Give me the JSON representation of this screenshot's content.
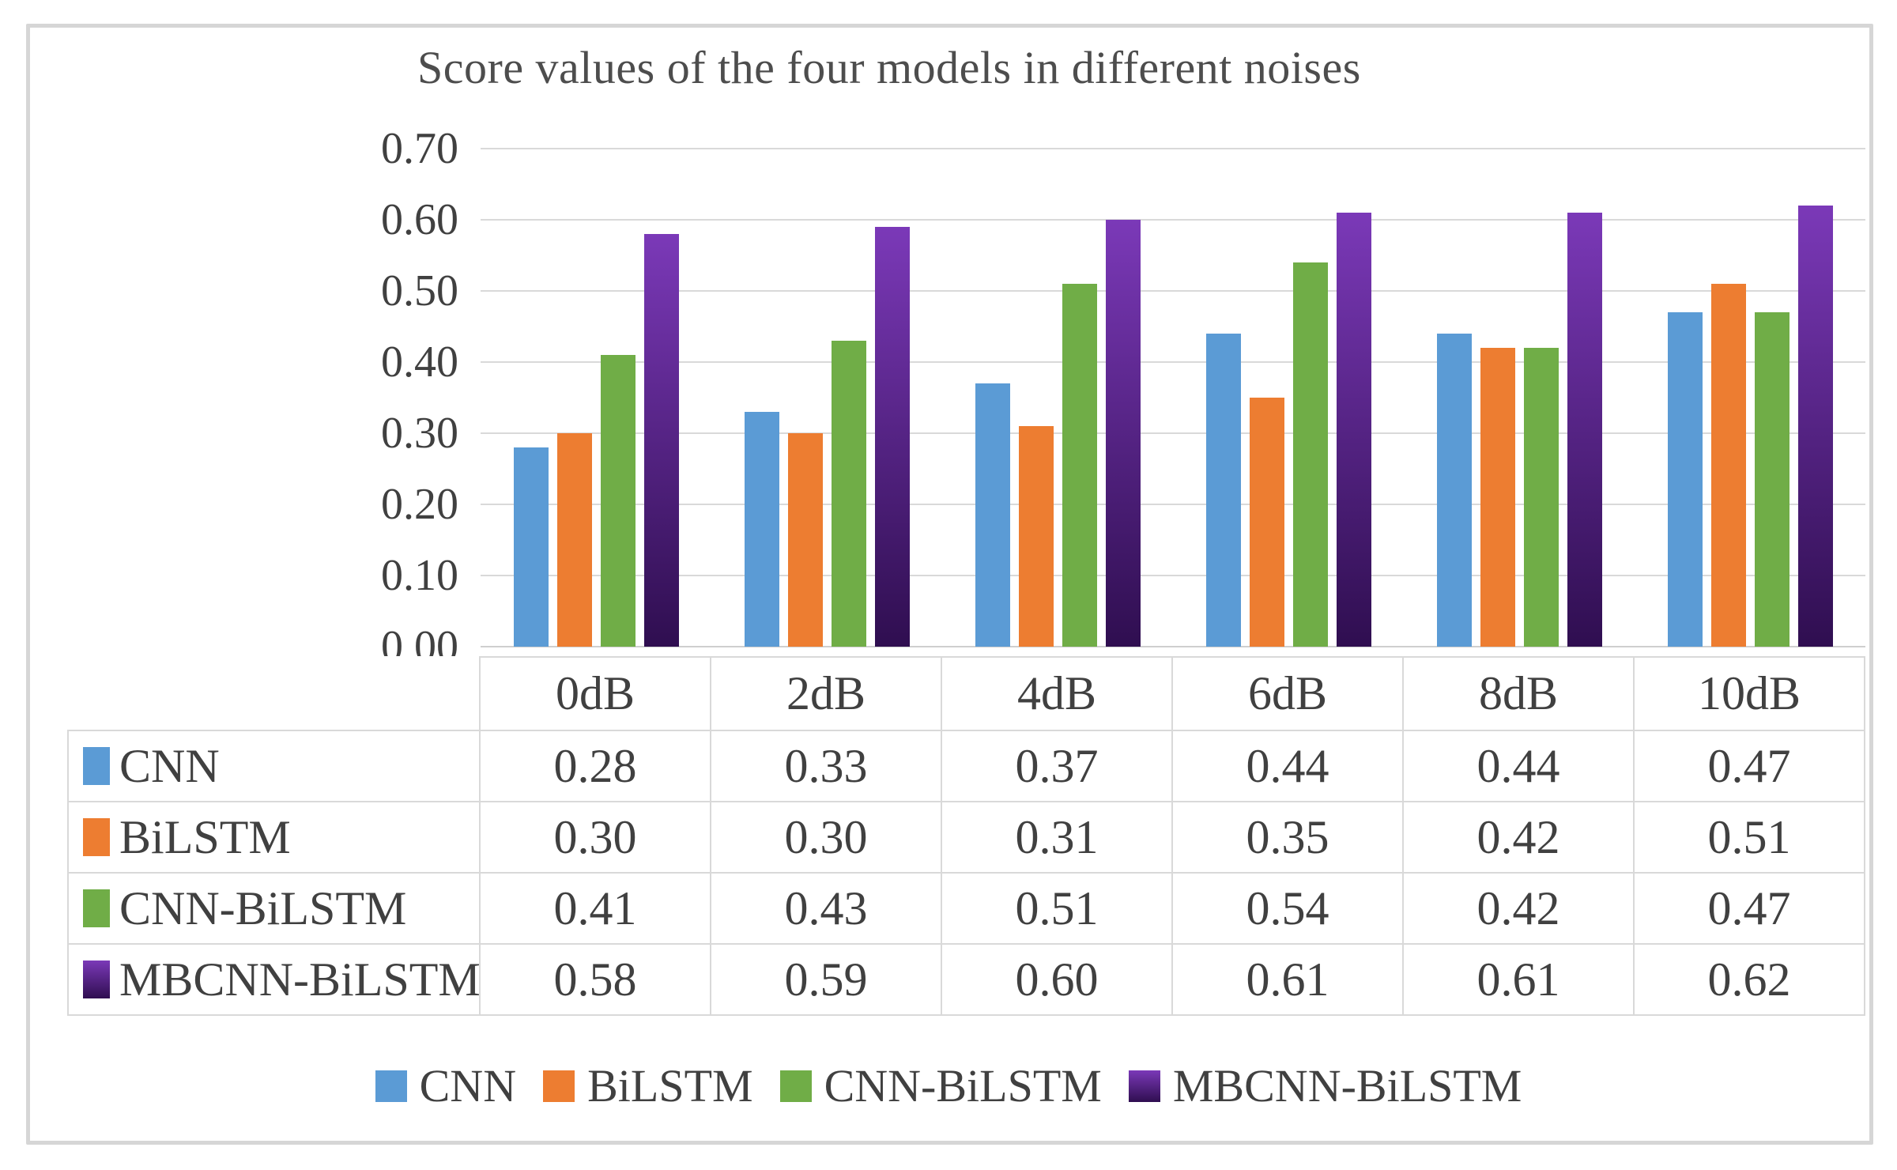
{
  "chart": {
    "title": "Score values of the four models in different noises"
  },
  "chart_data": {
    "type": "bar",
    "title": "Score values of the four models in different noises",
    "categories": [
      "0dB",
      "2dB",
      "4dB",
      "6dB",
      "8dB",
      "10dB"
    ],
    "series": [
      {
        "name": "CNN",
        "color": "#5B9BD5",
        "values": [
          0.28,
          0.33,
          0.37,
          0.44,
          0.44,
          0.47
        ]
      },
      {
        "name": "BiLSTM",
        "color": "#ED7D31",
        "values": [
          0.3,
          0.3,
          0.31,
          0.35,
          0.42,
          0.51
        ]
      },
      {
        "name": "CNN-BiLSTM",
        "color": "#70AD47",
        "values": [
          0.41,
          0.43,
          0.51,
          0.54,
          0.42,
          0.47
        ]
      },
      {
        "name": "MBCNN-BiLSTM",
        "color": "#7636AF",
        "gradient_top": "#7B39B8",
        "gradient_bottom": "#2F0E50",
        "values": [
          0.58,
          0.59,
          0.6,
          0.61,
          0.61,
          0.62
        ]
      }
    ],
    "y_ticks": [
      "0.70",
      "0.60",
      "0.50",
      "0.40",
      "0.30",
      "0.20",
      "0.10",
      "0.00"
    ],
    "ylim": [
      0,
      0.7
    ],
    "y_step": 0.1,
    "grid": true,
    "legend_position": "bottom",
    "data_table_shown": true,
    "colors": {
      "gridline": "#D9D9D9",
      "table_border": "#D9D9D9",
      "text": "#404040",
      "frame_border": "#D6D6D6"
    }
  }
}
